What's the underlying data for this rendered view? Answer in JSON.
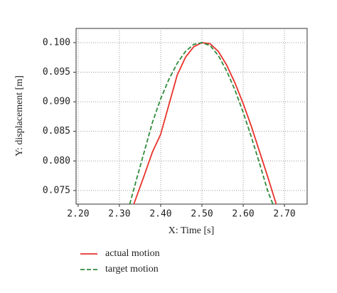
{
  "chart_data": {
    "type": "line",
    "x_label": "X: Time [s]",
    "y_label": "Y: displacement [m]",
    "xlim": [
      2.195,
      2.755
    ],
    "ylim": [
      0.0727,
      0.1024
    ],
    "xticks": [
      {
        "value": 2.2,
        "label": "2.20"
      },
      {
        "value": 2.3,
        "label": "2.30"
      },
      {
        "value": 2.4,
        "label": "2.40"
      },
      {
        "value": 2.5,
        "label": "2.50"
      },
      {
        "value": 2.6,
        "label": "2.60"
      },
      {
        "value": 2.7,
        "label": "2.70"
      }
    ],
    "yticks": [
      0.075,
      {
        "value": 0.08,
        "label": "0.080"
      },
      0.085,
      {
        "value": 0.09,
        "label": "0.090"
      },
      0.095,
      {
        "value": 0.1,
        "label": "0.100"
      }
    ],
    "grid": true,
    "legend": "bottom",
    "series": [
      {
        "name": "actual motion",
        "color": "#e8322a",
        "style": "solid",
        "x": [
          2.335,
          2.36,
          2.38,
          2.4,
          2.42,
          2.44,
          2.46,
          2.48,
          2.5,
          2.52,
          2.54,
          2.56,
          2.58,
          2.6,
          2.62,
          2.64,
          2.66,
          2.68
        ],
        "values": [
          0.0727,
          0.0775,
          0.0815,
          0.0845,
          0.0895,
          0.0945,
          0.0975,
          0.0993,
          0.1,
          0.0998,
          0.0985,
          0.0962,
          0.0932,
          0.0897,
          0.0858,
          0.0815,
          0.0772,
          0.0727
        ]
      },
      {
        "name": "target motion",
        "color": "#2e8b3a",
        "style": "dashed",
        "x": [
          2.325,
          2.34,
          2.36,
          2.38,
          2.4,
          2.42,
          2.44,
          2.46,
          2.48,
          2.5,
          2.52,
          2.54,
          2.56,
          2.58,
          2.6,
          2.62,
          2.64,
          2.66,
          2.672
        ],
        "values": [
          0.0727,
          0.0765,
          0.0815,
          0.0865,
          0.0905,
          0.0938,
          0.0965,
          0.0985,
          0.0997,
          0.1,
          0.0995,
          0.0978,
          0.0952,
          0.092,
          0.0882,
          0.084,
          0.0795,
          0.0748,
          0.0727
        ]
      }
    ]
  }
}
